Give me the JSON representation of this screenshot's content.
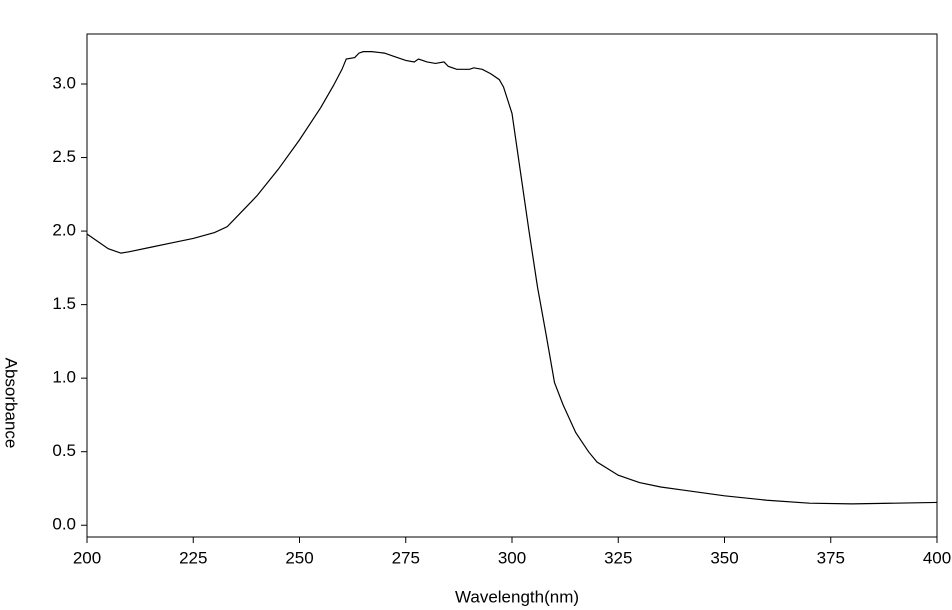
{
  "chart_data": {
    "type": "line",
    "xlabel": "Wavelength(nm)",
    "ylabel": "Absorbance",
    "x": [
      200,
      205,
      208,
      210,
      215,
      220,
      225,
      230,
      233,
      236,
      240,
      245,
      250,
      255,
      258,
      260,
      261,
      263,
      264,
      265,
      267,
      270,
      272,
      275,
      277,
      278,
      280,
      282,
      284,
      285,
      287,
      290,
      291,
      293,
      295,
      297,
      298,
      300,
      302,
      304,
      306,
      308,
      310,
      312,
      315,
      318,
      320,
      325,
      330,
      335,
      340,
      350,
      360,
      370,
      380,
      390,
      400
    ],
    "series": [
      {
        "color": "#000000",
        "values": [
          1.98,
          1.88,
          1.85,
          1.86,
          1.89,
          1.92,
          1.95,
          1.99,
          2.03,
          2.12,
          2.24,
          2.42,
          2.62,
          2.84,
          2.99,
          3.1,
          3.17,
          3.18,
          3.21,
          3.22,
          3.22,
          3.21,
          3.19,
          3.16,
          3.15,
          3.17,
          3.15,
          3.14,
          3.15,
          3.12,
          3.1,
          3.1,
          3.11,
          3.1,
          3.07,
          3.03,
          2.98,
          2.8,
          2.4,
          2.0,
          1.62,
          1.3,
          0.97,
          0.82,
          0.63,
          0.5,
          0.43,
          0.34,
          0.29,
          0.26,
          0.24,
          0.2,
          0.17,
          0.15,
          0.145,
          0.15,
          0.155
        ]
      }
    ],
    "xlim": [
      200,
      400
    ],
    "xticks": [
      200,
      225,
      250,
      275,
      300,
      325,
      350,
      375,
      400
    ],
    "ylim": [
      -0.08,
      3.34
    ],
    "yticks": [
      {
        "value": 0,
        "label": "0.0"
      },
      0.5,
      {
        "value": 1,
        "label": "1.0"
      },
      1.5,
      {
        "value": 2,
        "label": "2.0"
      },
      2.5,
      {
        "value": 3,
        "label": "3.0"
      }
    ]
  }
}
